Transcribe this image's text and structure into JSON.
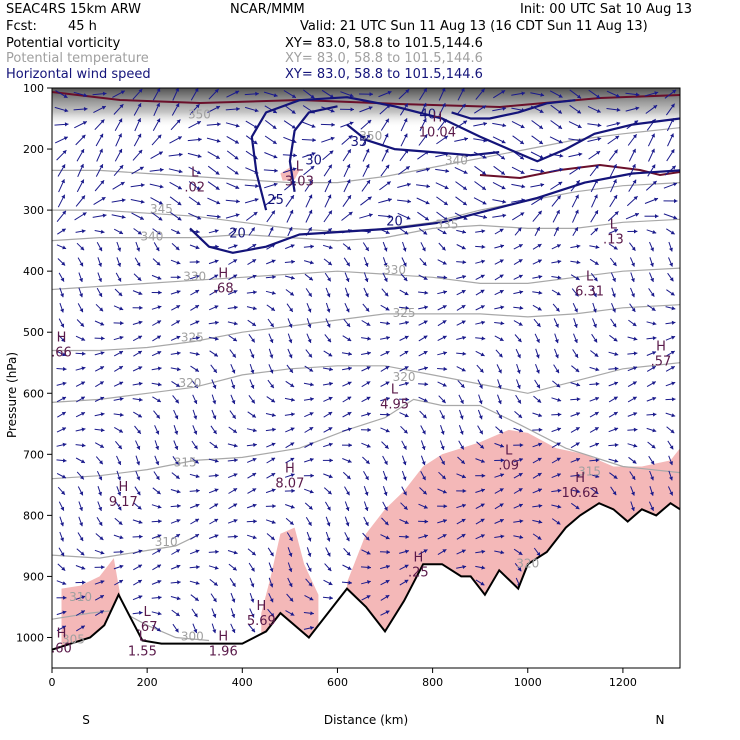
{
  "header": {
    "model": "SEAC4RS 15km ARW",
    "org": "NCAR/MMM",
    "init": "Init: 00 UTC Sat 10 Aug 13",
    "fcst_label": "Fcst:",
    "fcst_value": "45 h",
    "valid": "Valid: 21 UTC Sun 11 Aug 13 (16 CDT Sun 11 Aug 13)"
  },
  "fields": [
    {
      "name": "Potential vorticity",
      "xy": "XY=  83.0, 58.8 to 101.5,144.6",
      "color": "#000000"
    },
    {
      "name": "Potential temperature",
      "xy": "XY=  83.0, 58.8 to 101.5,144.6",
      "color": "#a0a0a0"
    },
    {
      "name": "Horizontal wind speed",
      "xy": "XY=  83.0, 58.8 to 101.5,144.6",
      "color": "#14147a"
    }
  ],
  "chart_data": {
    "type": "cross-section",
    "xlabel": "Distance (km)",
    "ylabel": "Pressure (hPa)",
    "xlim": [
      0,
      1320
    ],
    "ylim": [
      1050,
      100
    ],
    "x_ticks": [
      "0",
      "200",
      "400",
      "600",
      "800",
      "1000",
      "1200"
    ],
    "y_ticks": [
      "100",
      "200",
      "300",
      "400",
      "500",
      "600",
      "700",
      "800",
      "900",
      "1000"
    ],
    "x_end_labels": {
      "left": "S",
      "right": "N"
    },
    "terrain_pressure": [
      {
        "x": 0,
        "p": 1020
      },
      {
        "x": 40,
        "p": 1010
      },
      {
        "x": 80,
        "p": 1000
      },
      {
        "x": 110,
        "p": 980
      },
      {
        "x": 140,
        "p": 930
      },
      {
        "x": 160,
        "p": 960
      },
      {
        "x": 190,
        "p": 1005
      },
      {
        "x": 230,
        "p": 1010
      },
      {
        "x": 300,
        "p": 1010
      },
      {
        "x": 400,
        "p": 1010
      },
      {
        "x": 450,
        "p": 990
      },
      {
        "x": 480,
        "p": 960
      },
      {
        "x": 510,
        "p": 980
      },
      {
        "x": 540,
        "p": 1000
      },
      {
        "x": 580,
        "p": 960
      },
      {
        "x": 620,
        "p": 920
      },
      {
        "x": 660,
        "p": 950
      },
      {
        "x": 700,
        "p": 990
      },
      {
        "x": 740,
        "p": 940
      },
      {
        "x": 780,
        "p": 880
      },
      {
        "x": 820,
        "p": 880
      },
      {
        "x": 860,
        "p": 900
      },
      {
        "x": 880,
        "p": 900
      },
      {
        "x": 910,
        "p": 930
      },
      {
        "x": 940,
        "p": 890
      },
      {
        "x": 980,
        "p": 920
      },
      {
        "x": 1000,
        "p": 880
      },
      {
        "x": 1040,
        "p": 860
      },
      {
        "x": 1080,
        "p": 820
      },
      {
        "x": 1110,
        "p": 800
      },
      {
        "x": 1150,
        "p": 780
      },
      {
        "x": 1180,
        "p": 790
      },
      {
        "x": 1210,
        "p": 810
      },
      {
        "x": 1240,
        "p": 790
      },
      {
        "x": 1270,
        "p": 800
      },
      {
        "x": 1300,
        "p": 780
      },
      {
        "x": 1320,
        "p": 790
      }
    ],
    "wind_speed_contours": [
      {
        "label": "20",
        "points": [
          [
            290,
            330
          ],
          [
            330,
            360
          ],
          [
            380,
            370
          ],
          [
            450,
            360
          ],
          [
            520,
            340
          ],
          [
            620,
            335
          ],
          [
            720,
            330
          ],
          [
            820,
            320
          ],
          [
            920,
            300
          ],
          [
            1020,
            280
          ],
          [
            1120,
            255
          ],
          [
            1220,
            240
          ],
          [
            1320,
            235
          ]
        ]
      },
      {
        "label": "25",
        "points": [
          [
            450,
            300
          ],
          [
            430,
            240
          ],
          [
            420,
            180
          ],
          [
            450,
            140
          ],
          [
            520,
            120
          ],
          [
            620,
            115
          ],
          [
            720,
            130
          ],
          [
            820,
            150
          ],
          [
            900,
            180
          ],
          [
            960,
            200
          ],
          [
            1020,
            220
          ],
          [
            1080,
            200
          ],
          [
            1140,
            175
          ],
          [
            1220,
            160
          ],
          [
            1320,
            150
          ]
        ]
      },
      {
        "label": "30",
        "points": [
          [
            510,
            270
          ],
          [
            500,
            220
          ],
          [
            510,
            170
          ],
          [
            540,
            140
          ],
          [
            600,
            130
          ]
        ]
      },
      {
        "label": "35",
        "points": [
          [
            620,
            160
          ],
          [
            660,
            185
          ],
          [
            720,
            200
          ],
          [
            800,
            205
          ],
          [
            880,
            210
          ],
          [
            940,
            205
          ]
        ]
      },
      {
        "label": "40",
        "points": [
          [
            840,
            140
          ],
          [
            880,
            150
          ],
          [
            920,
            150
          ],
          [
            980,
            140
          ],
          [
            1040,
            125
          ],
          [
            1100,
            120
          ]
        ]
      }
    ],
    "theta_contours": [
      {
        "label": "300",
        "points": [
          [
            140,
            955
          ],
          [
            200,
            980
          ],
          [
            260,
            1000
          ],
          [
            330,
            1005
          ]
        ]
      },
      {
        "label": "305",
        "points": [
          [
            0,
            970
          ],
          [
            80,
            960
          ],
          [
            140,
            955
          ]
        ]
      },
      {
        "label": "310",
        "points": [
          [
            0,
            865
          ],
          [
            100,
            870
          ],
          [
            180,
            860
          ],
          [
            260,
            850
          ],
          [
            300,
            835
          ]
        ]
      },
      {
        "label": "315",
        "points": [
          [
            0,
            740
          ],
          [
            100,
            735
          ],
          [
            200,
            725
          ],
          [
            300,
            710
          ],
          [
            400,
            705
          ],
          [
            520,
            690
          ],
          [
            620,
            660
          ],
          [
            700,
            640
          ],
          [
            760,
            610
          ],
          [
            820,
            620
          ],
          [
            900,
            620
          ],
          [
            980,
            650
          ],
          [
            1080,
            690
          ],
          [
            1200,
            720
          ],
          [
            1320,
            730
          ]
        ]
      },
      {
        "label": "320",
        "points": [
          [
            0,
            615
          ],
          [
            100,
            610
          ],
          [
            200,
            600
          ],
          [
            300,
            590
          ],
          [
            400,
            570
          ],
          [
            500,
            560
          ],
          [
            600,
            555
          ],
          [
            700,
            555
          ],
          [
            800,
            570
          ],
          [
            900,
            585
          ],
          [
            1000,
            600
          ],
          [
            1100,
            580
          ],
          [
            1200,
            560
          ],
          [
            1320,
            550
          ]
        ]
      },
      {
        "label": "325",
        "points": [
          [
            0,
            530
          ],
          [
            100,
            530
          ],
          [
            200,
            525
          ],
          [
            300,
            515
          ],
          [
            400,
            500
          ],
          [
            500,
            490
          ],
          [
            600,
            480
          ],
          [
            700,
            470
          ],
          [
            800,
            470
          ],
          [
            900,
            470
          ],
          [
            1000,
            475
          ],
          [
            1100,
            470
          ],
          [
            1200,
            460
          ],
          [
            1320,
            455
          ]
        ]
      },
      {
        "label": "330",
        "points": [
          [
            0,
            430
          ],
          [
            100,
            425
          ],
          [
            200,
            420
          ],
          [
            300,
            415
          ],
          [
            400,
            410
          ],
          [
            500,
            405
          ],
          [
            600,
            400
          ],
          [
            700,
            405
          ],
          [
            800,
            410
          ],
          [
            900,
            420
          ],
          [
            1000,
            420
          ],
          [
            1100,
            410
          ],
          [
            1200,
            400
          ],
          [
            1320,
            395
          ]
        ]
      },
      {
        "label": "335",
        "points": [
          [
            0,
            350
          ],
          [
            100,
            345
          ],
          [
            200,
            345
          ],
          [
            300,
            345
          ],
          [
            400,
            340
          ],
          [
            500,
            345
          ],
          [
            600,
            350
          ],
          [
            700,
            345
          ],
          [
            800,
            330
          ],
          [
            900,
            325
          ],
          [
            1000,
            330
          ],
          [
            1100,
            330
          ],
          [
            1200,
            320
          ],
          [
            1320,
            315
          ]
        ]
      },
      {
        "label": "340",
        "points": [
          [
            0,
            300
          ],
          [
            100,
            300
          ],
          [
            200,
            305
          ],
          [
            300,
            310
          ],
          [
            400,
            320
          ],
          [
            500,
            330
          ],
          [
            600,
            335
          ],
          [
            700,
            330
          ],
          [
            800,
            320
          ],
          [
            900,
            300
          ],
          [
            1000,
            285
          ],
          [
            1100,
            270
          ],
          [
            1200,
            260
          ],
          [
            1320,
            255
          ]
        ]
      },
      {
        "label": "345",
        "points": [
          [
            0,
            235
          ],
          [
            100,
            235
          ],
          [
            200,
            240
          ],
          [
            300,
            245
          ],
          [
            400,
            250
          ],
          [
            500,
            255
          ],
          [
            600,
            255
          ],
          [
            700,
            245
          ],
          [
            800,
            230
          ],
          [
            900,
            215
          ],
          [
            1000,
            200
          ],
          [
            1100,
            185
          ],
          [
            1200,
            175
          ],
          [
            1320,
            165
          ]
        ]
      }
    ],
    "theta_labels": [
      {
        "text": "300",
        "x": 295,
        "p": 1005
      },
      {
        "text": "305",
        "x": 45,
        "p": 1010
      },
      {
        "text": "310",
        "x": 60,
        "p": 940
      },
      {
        "text": "310",
        "x": 240,
        "p": 850
      },
      {
        "text": "315",
        "x": 280,
        "p": 720
      },
      {
        "text": "320",
        "x": 290,
        "p": 590
      },
      {
        "text": "320",
        "x": 740,
        "p": 580
      },
      {
        "text": "325",
        "x": 295,
        "p": 515
      },
      {
        "text": "325",
        "x": 740,
        "p": 475
      },
      {
        "text": "330",
        "x": 300,
        "p": 415
      },
      {
        "text": "330",
        "x": 720,
        "p": 405
      },
      {
        "text": "335",
        "x": 830,
        "p": 330
      },
      {
        "text": "340",
        "x": 210,
        "p": 350
      },
      {
        "text": "340",
        "x": 850,
        "p": 225
      },
      {
        "text": "345",
        "x": 230,
        "p": 305
      },
      {
        "text": "350",
        "x": 310,
        "p": 150
      },
      {
        "text": "350",
        "x": 670,
        "p": 185
      },
      {
        "text": "315",
        "x": 1130,
        "p": 735
      },
      {
        "text": "320",
        "x": 1000,
        "p": 885
      }
    ],
    "speed_labels": [
      {
        "text": "20",
        "x": 390,
        "p": 345
      },
      {
        "text": "20",
        "x": 720,
        "p": 325
      },
      {
        "text": "25",
        "x": 470,
        "p": 290
      },
      {
        "text": "30",
        "x": 550,
        "p": 225
      },
      {
        "text": "35",
        "x": 645,
        "p": 195
      },
      {
        "text": "40",
        "x": 790,
        "p": 150
      }
    ],
    "pressure_centers": [
      {
        "type": "H",
        "value": "10.04",
        "x": 810,
        "p": 165
      },
      {
        "type": "L",
        "value": "3.03",
        "x": 520,
        "p": 245
      },
      {
        "type": "L",
        "value": ".02",
        "x": 300,
        "p": 255
      },
      {
        "type": "L",
        "value": ".13",
        "x": 1180,
        "p": 340
      },
      {
        "type": "H",
        "value": ".68",
        "x": 360,
        "p": 420
      },
      {
        "type": "L",
        "value": "6.31",
        "x": 1130,
        "p": 425
      },
      {
        "type": "H",
        "value": ".66",
        "x": 20,
        "p": 525
      },
      {
        "type": "H",
        "value": ".57",
        "x": 1280,
        "p": 540
      },
      {
        "type": "L",
        "value": "4.95",
        "x": 720,
        "p": 610
      },
      {
        "type": "L",
        "value": ".09",
        "x": 960,
        "p": 710
      },
      {
        "type": "H",
        "value": "8.07",
        "x": 500,
        "p": 740
      },
      {
        "type": "H",
        "value": "10.62",
        "x": 1110,
        "p": 755
      },
      {
        "type": "H",
        "value": "9.17",
        "x": 150,
        "p": 770
      },
      {
        "type": "H",
        "value": ".25",
        "x": 770,
        "p": 885
      },
      {
        "type": "H",
        "value": "5.69",
        "x": 440,
        "p": 965
      },
      {
        "type": "L",
        "value": ".67",
        "x": 200,
        "p": 975
      },
      {
        "type": "H",
        "value": ".60",
        "x": 20,
        "p": 1010
      },
      {
        "type": "L",
        "value": "1.55",
        "x": 190,
        "p": 1015
      },
      {
        "type": "H",
        "value": "1.96",
        "x": 360,
        "p": 1015
      }
    ]
  }
}
